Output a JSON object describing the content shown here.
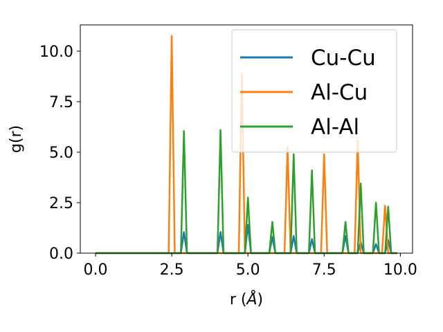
{
  "chart_data": {
    "type": "line",
    "title": "",
    "xlabel_prefix": "r (",
    "xlabel_symbol": "Å",
    "xlabel_suffix": ")",
    "ylabel": "g(r)",
    "xlim": [
      -0.5,
      10.4
    ],
    "ylim": [
      0,
      11.3
    ],
    "xticks": [
      0.0,
      2.5,
      5.0,
      7.5,
      10.0
    ],
    "xtick_labels": [
      "0.0",
      "2.5",
      "5.0",
      "7.5",
      "10.0"
    ],
    "yticks": [
      0.0,
      2.5,
      5.0,
      7.5,
      10.0
    ],
    "ytick_labels": [
      "0.0",
      "2.5",
      "5.0",
      "7.5",
      "10.0"
    ],
    "legend_position": "top-right",
    "grid": false,
    "series": [
      {
        "name": "Cu-Cu",
        "color": "#1f77b4",
        "x": [
          0.0,
          2.8,
          2.9,
          3.0,
          4.0,
          4.1,
          4.2,
          4.9,
          5.0,
          5.1,
          5.7,
          5.8,
          5.9,
          6.4,
          6.5,
          6.6,
          7.0,
          7.1,
          7.2,
          8.1,
          8.2,
          8.3,
          8.6,
          8.7,
          8.8,
          9.1,
          9.2,
          9.3,
          9.5,
          9.6,
          9.7,
          9.9
        ],
        "y": [
          0,
          0,
          1.05,
          0,
          0,
          1.05,
          0,
          0,
          1.4,
          0,
          0,
          0.8,
          0,
          0,
          0.85,
          0,
          0,
          0.7,
          0,
          0,
          0.85,
          0,
          0,
          0.55,
          0,
          0,
          0.45,
          0,
          0,
          0.65,
          0,
          0
        ]
      },
      {
        "name": "Al-Cu",
        "color": "#ff7f0e",
        "x": [
          0.0,
          2.4,
          2.5,
          2.6,
          4.7,
          4.8,
          4.9,
          6.2,
          6.3,
          6.4,
          7.4,
          7.5,
          7.6,
          8.5,
          8.6,
          8.7,
          9.4,
          9.5,
          9.6,
          9.9
        ],
        "y": [
          0,
          0,
          10.75,
          0,
          0,
          8.9,
          0,
          0,
          5.25,
          0,
          0,
          4.9,
          0,
          0,
          5.6,
          0,
          0,
          2.35,
          0,
          0
        ]
      },
      {
        "name": "Al-Al",
        "color": "#2ca02c",
        "x": [
          0.0,
          2.8,
          2.9,
          3.0,
          4.0,
          4.1,
          4.2,
          4.9,
          5.0,
          5.1,
          5.7,
          5.8,
          5.9,
          6.4,
          6.5,
          6.6,
          7.0,
          7.1,
          7.2,
          8.1,
          8.2,
          8.3,
          8.6,
          8.7,
          8.8,
          9.1,
          9.2,
          9.3,
          9.5,
          9.6,
          9.7,
          9.9
        ],
        "y": [
          0,
          0,
          6.05,
          0,
          0,
          6.1,
          0,
          0,
          2.75,
          0,
          0,
          1.55,
          0,
          0,
          4.9,
          0,
          0,
          4.1,
          0,
          0,
          1.55,
          0,
          0,
          3.45,
          0,
          0,
          2.5,
          0,
          0,
          2.3,
          0,
          0
        ]
      }
    ]
  }
}
